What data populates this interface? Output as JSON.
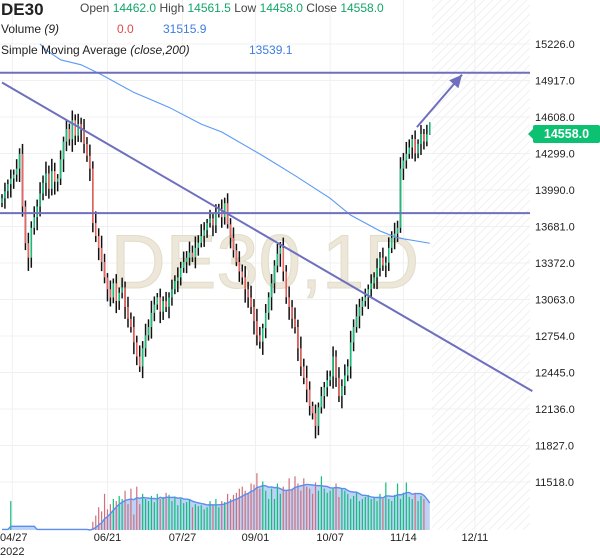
{
  "header": {
    "symbol": "DE30",
    "open_label": "Open",
    "open": "14462.0",
    "high_label": "High",
    "high": "14561.5",
    "low_label": "Low",
    "low": "14458.0",
    "close_label": "Close",
    "close": "14558.0",
    "volume_label": "Volume",
    "volume_param": "(9)",
    "volume_value": "0.0",
    "volume_ma": "31515.9",
    "sma_label": "Simple Moving Average",
    "sma_param": "(close,200)",
    "sma_value": "13539.1"
  },
  "last_price_tag": "14558.0",
  "chart_data": {
    "type": "ohlc",
    "title": "DE30",
    "watermark": "DE30,1D",
    "interval": "1D",
    "ylim": [
      11518,
      15226
    ],
    "y_ticks": [
      "15226.0",
      "14917.0",
      "14608.0",
      "14299.0",
      "13990.0",
      "13681.0",
      "13372.0",
      "13063.0",
      "12754.0",
      "12445.0",
      "12136.0",
      "11827.0",
      "11518.0"
    ],
    "x_ticks": [
      {
        "label": "04/27",
        "bar": 3.5,
        "sub": "2022"
      },
      {
        "label": "06/21",
        "bar": 36
      },
      {
        "label": "07/27",
        "bar": 61.6
      },
      {
        "label": "09/01",
        "bar": 86.5
      },
      {
        "label": "10/07",
        "bar": 112
      },
      {
        "label": "11/14",
        "bar": 137
      },
      {
        "label": "12/11",
        "bar": 161.4
      }
    ],
    "total_slots": 181,
    "closes": [
      13920,
      13980,
      14040,
      14087,
      14120,
      14171,
      14296,
      13850,
      13540,
      13417,
      13670,
      13760,
      13850,
      13960,
      14050,
      14130,
      14000,
      14150,
      14060,
      14087,
      14250,
      14400,
      14506,
      14420,
      14580,
      14450,
      14548,
      14500,
      14380,
      14280,
      14171,
      13710,
      13600,
      13500,
      13380,
      13250,
      13150,
      13080,
      13200,
      13050,
      13120,
      13166,
      13000,
      12900,
      12830,
      12700,
      12580,
      12496,
      12650,
      12760,
      12830,
      12950,
      13020,
      13082,
      12960,
      13050,
      13000,
      13080,
      13150,
      13220,
      13250,
      13330,
      13380,
      13417,
      13460,
      13420,
      13500,
      13543,
      13600,
      13650,
      13710,
      13750,
      13690,
      13794,
      13830,
      13760,
      13878,
      13700,
      13585,
      13480,
      13380,
      13300,
      13250,
      13150,
      13080,
      13000,
      12880,
      12760,
      12706,
      12820,
      12950,
      13082,
      13200,
      13350,
      13450,
      13500,
      13300,
      13082,
      13000,
      12900,
      12830,
      12650,
      12496,
      12400,
      12300,
      12161,
      12100,
      11993,
      12150,
      12245,
      12320,
      12380,
      12412,
      12580,
      12400,
      12245,
      12330,
      12420,
      12496,
      12700,
      12830,
      12920,
      13000,
      13050,
      13082,
      13150,
      13200,
      13250,
      13330,
      13417,
      13350,
      13375,
      13500,
      13585,
      13620,
      13670,
      14171,
      14240,
      14296,
      14350,
      14422,
      14300,
      14380,
      14464,
      14400,
      14462,
      14558
    ],
    "last_bar": {
      "open": 14462.0,
      "high": 14561.5,
      "low": 14458.0,
      "close": 14558.0
    },
    "volumes_k": [
      0,
      0,
      0,
      28,
      0,
      0,
      0,
      0,
      0,
      0,
      0,
      0,
      0,
      0,
      0,
      0,
      0,
      0,
      0,
      0,
      0,
      0,
      0,
      0,
      0,
      0,
      0,
      0,
      0,
      0,
      0,
      8,
      14,
      22,
      18,
      35,
      20,
      25,
      30,
      28,
      33,
      30,
      38,
      25,
      40,
      15,
      42,
      25,
      35,
      30,
      28,
      33,
      27,
      35,
      30,
      32,
      36,
      34,
      28,
      31,
      24,
      30,
      26,
      27,
      29,
      22,
      25,
      23,
      24,
      20,
      22,
      28,
      25,
      30,
      22,
      28,
      27,
      35,
      30,
      34,
      36,
      40,
      42,
      38,
      36,
      45,
      44,
      55,
      40,
      47,
      38,
      30,
      40,
      30,
      45,
      35,
      42,
      38,
      50,
      40,
      52,
      45,
      38,
      50,
      42,
      40,
      35,
      46,
      38,
      52,
      40,
      36,
      38,
      40,
      45,
      32,
      40,
      38,
      35,
      30,
      33,
      36,
      28,
      30,
      32,
      34,
      30,
      32,
      28,
      35,
      30,
      46,
      30,
      28,
      34,
      45,
      30,
      36,
      46,
      32,
      30,
      36,
      28,
      33,
      30,
      0
    ],
    "volume_ma_period": 9,
    "sma200": [
      [
        15,
        15176
      ],
      [
        20,
        15092
      ],
      [
        27,
        15050
      ],
      [
        34,
        14966
      ],
      [
        45,
        14816
      ],
      [
        57,
        14690
      ],
      [
        68,
        14548
      ],
      [
        75,
        14481
      ],
      [
        89,
        14280
      ],
      [
        100,
        14112
      ],
      [
        112,
        13920
      ],
      [
        119,
        13777
      ],
      [
        129,
        13643
      ],
      [
        135,
        13585
      ],
      [
        146,
        13539.1
      ]
    ],
    "drawings": [
      {
        "type": "hline",
        "price": 14983
      },
      {
        "type": "hline",
        "price": 13794
      },
      {
        "type": "trendline",
        "from": [
          0,
          14900
        ],
        "to": [
          181,
          12287
        ]
      },
      {
        "type": "arrow",
        "from": [
          141.6,
          14522
        ],
        "to": [
          157,
          14966
        ]
      }
    ],
    "colors": {
      "up": "#12bf78",
      "down": "#f0625e",
      "wick": "#111111",
      "sma": "#5b9af5",
      "drawing": "#6f6fbf",
      "volume_ma": "#5b8def",
      "volume_fill": "#b6cdf6"
    }
  }
}
